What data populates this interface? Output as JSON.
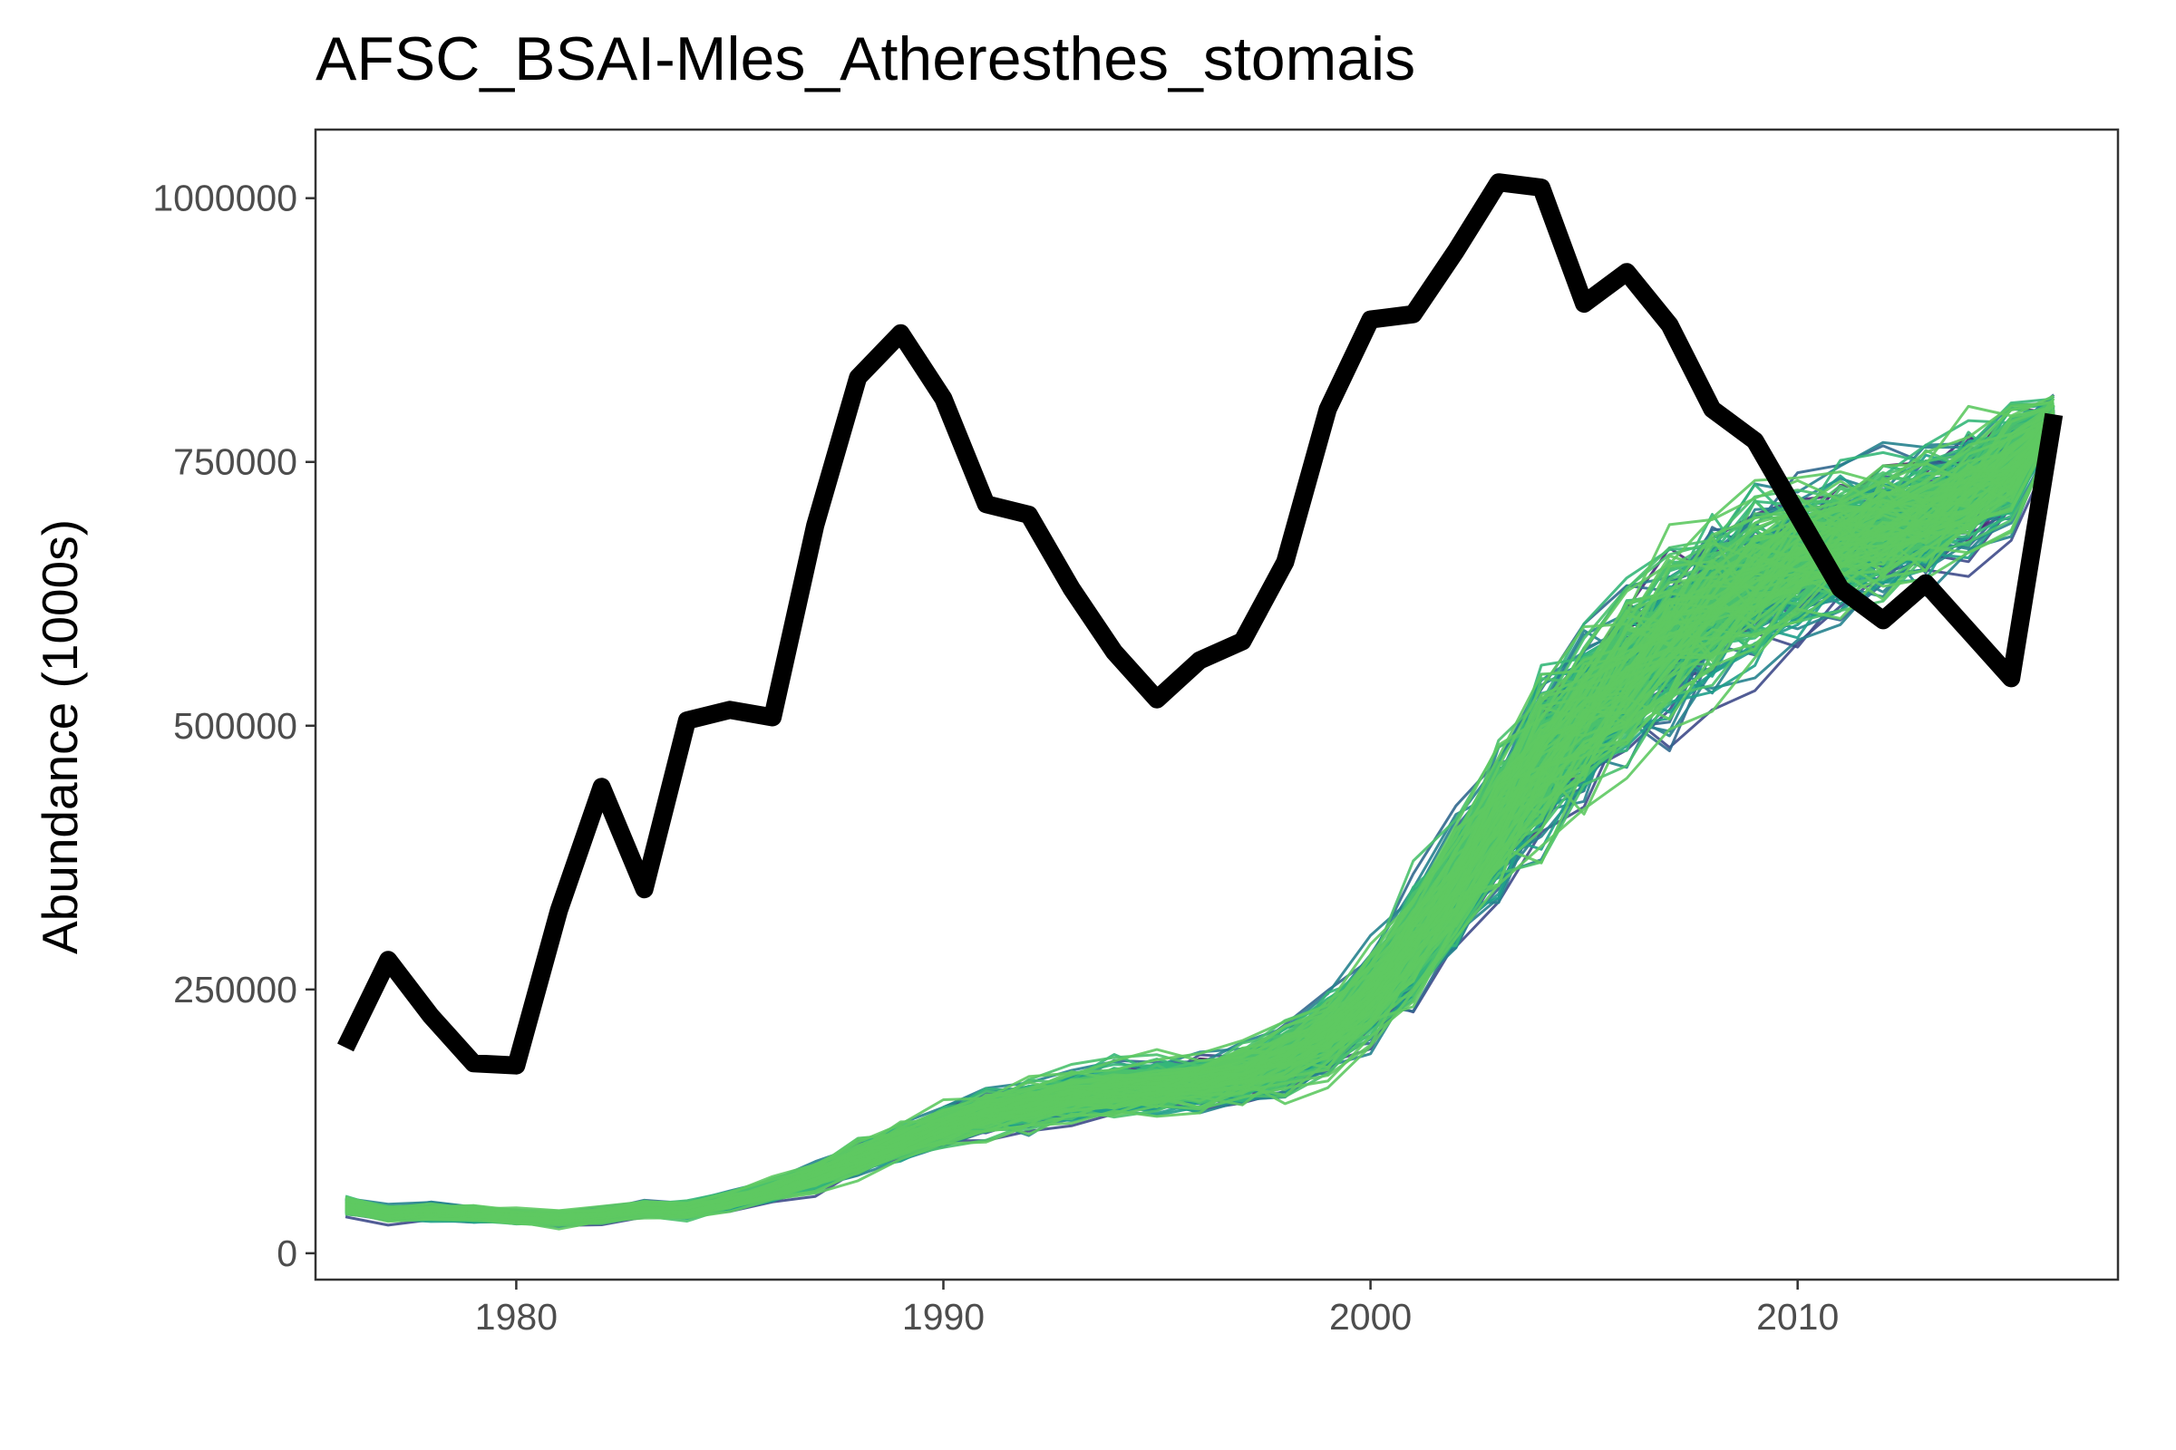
{
  "chart_data": {
    "type": "line",
    "title": "AFSC_BSAI-Mles_Atheresthes_stomais",
    "xlabel": "",
    "ylabel": "Abundance (1000s)",
    "xlim": [
      1975.3,
      2017.5
    ],
    "ylim": [
      -25000,
      1065000
    ],
    "x_ticks": [
      1980,
      1990,
      2000,
      2010
    ],
    "x_tick_labels": [
      "1980",
      "1990",
      "2000",
      "2010"
    ],
    "y_ticks": [
      0,
      250000,
      500000,
      750000,
      1000000
    ],
    "y_tick_labels": [
      "0",
      "250000",
      "500000",
      "750000",
      "1000000"
    ],
    "grid": false,
    "legend": "none",
    "observed": {
      "color": "#000000",
      "x": [
        1976,
        1977,
        1978,
        1979,
        1980,
        1981,
        1982,
        1983,
        1984,
        1985,
        1986,
        1987,
        1988,
        1989,
        1990,
        1991,
        1992,
        1993,
        1994,
        1995,
        1996,
        1997,
        1998,
        1999,
        2000,
        2001,
        2002,
        2003,
        2004,
        2005,
        2006,
        2007,
        2008,
        2009,
        2010,
        2011,
        2012,
        2013,
        2014,
        2015,
        2016
      ],
      "y": [
        195000,
        278000,
        225000,
        180000,
        178000,
        325000,
        442000,
        345000,
        505000,
        515000,
        508000,
        690000,
        830000,
        872000,
        810000,
        710000,
        700000,
        630000,
        570000,
        525000,
        562000,
        580000,
        655000,
        800000,
        885000,
        890000,
        950000,
        1015000,
        1010000,
        900000,
        930000,
        880000,
        800000,
        770000,
        700000,
        630000,
        600000,
        635000,
        590000,
        545000,
        795000
      ]
    },
    "simulations": {
      "count": 300,
      "colors": [
        "#440154",
        "#482878",
        "#3e4a89",
        "#31688e",
        "#26828e",
        "#1f9e89",
        "#35b779",
        "#4ac16d",
        "#5ec962"
      ],
      "x": [
        1976,
        1977,
        1978,
        1979,
        1980,
        1981,
        1982,
        1983,
        1984,
        1985,
        1986,
        1987,
        1988,
        1989,
        1990,
        1991,
        1992,
        1993,
        1994,
        1995,
        1996,
        1997,
        1998,
        1999,
        2000,
        2001,
        2002,
        2003,
        2004,
        2005,
        2006,
        2007,
        2008,
        2009,
        2010,
        2011,
        2012,
        2013,
        2014,
        2015,
        2016
      ],
      "median": [
        45000,
        38000,
        39000,
        37000,
        35000,
        33000,
        36000,
        42000,
        41000,
        50000,
        60000,
        72000,
        90000,
        105000,
        120000,
        133000,
        140000,
        150000,
        155000,
        158000,
        162000,
        170000,
        185000,
        208000,
        245000,
        295000,
        350000,
        410000,
        465000,
        510000,
        550000,
        585000,
        615000,
        640000,
        660000,
        675000,
        688000,
        700000,
        720000,
        748000,
        790000
      ],
      "spread": [
        8000,
        7000,
        7000,
        6500,
        6000,
        6000,
        6500,
        7000,
        7000,
        8000,
        10000,
        12000,
        14000,
        16000,
        19000,
        21000,
        22000,
        23000,
        24000,
        24000,
        25000,
        28000,
        32000,
        38000,
        45000,
        55000,
        65000,
        72000,
        80000,
        82000,
        82000,
        80000,
        78000,
        74000,
        70000,
        66000,
        62000,
        60000,
        58000,
        56000,
        20000
      ]
    }
  }
}
